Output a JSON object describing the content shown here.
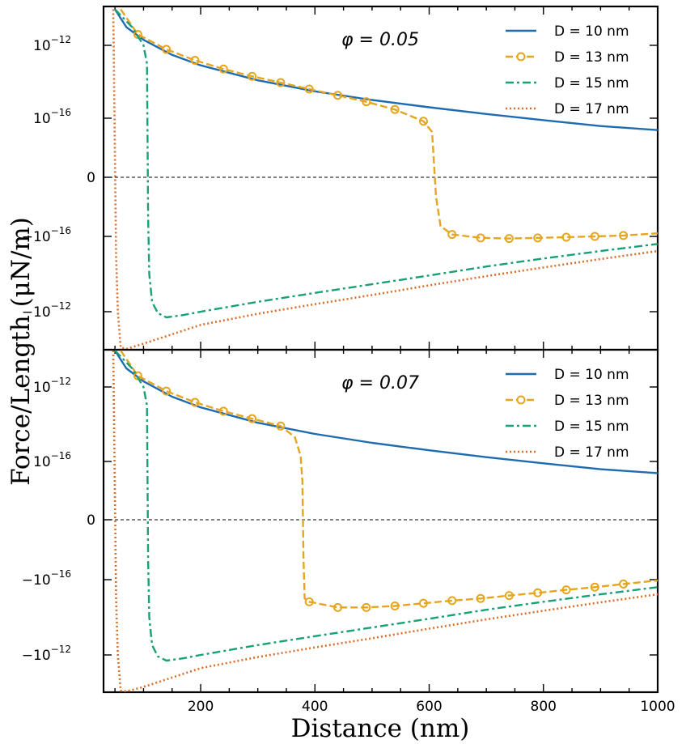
{
  "chart_data": {
    "type": "line",
    "xlabel": "Distance (nm)",
    "ylabel": "Force/Length (μN/m)",
    "y_scale": "symlog",
    "xlim": [
      30,
      1000
    ],
    "x_ticks": [
      200,
      400,
      600,
      800,
      1000
    ],
    "x_tick_labels": [
      "200",
      "400",
      "600",
      "800",
      "1000"
    ],
    "y_ticks": [
      {
        "value": 1e-12,
        "base": "10",
        "exp": "−12"
      },
      {
        "value": 1e-16,
        "base": "10",
        "exp": "−16"
      },
      {
        "value": 0,
        "base": "0",
        "exp": ""
      },
      {
        "value": -1e-16,
        "base": "−10",
        "exp": "−16"
      },
      {
        "value": -1e-12,
        "base": "−10",
        "exp": "−12"
      }
    ],
    "panels": [
      {
        "title": "φ = 0.05",
        "legend": [
          "D = 10 nm",
          "D = 13 nm",
          "D = 15 nm",
          "D = 17 nm"
        ],
        "series": [
          {
            "name": "D = 10 nm",
            "color": "#1f6bb0",
            "style": "solid",
            "points": [
              [
                50,
                9.5e-11
              ],
              [
                70,
                1e-11
              ],
              [
                100,
                2e-12
              ],
              [
                150,
                3e-13
              ],
              [
                200,
                8e-14
              ],
              [
                300,
                1.2e-14
              ],
              [
                400,
                3e-15
              ],
              [
                500,
                1e-15
              ],
              [
                600,
                4e-16
              ],
              [
                700,
                1.7e-16
              ],
              [
                800,
                8e-17
              ],
              [
                900,
                4e-17
              ],
              [
                1000,
                2.5e-17
              ]
            ]
          },
          {
            "name": "D = 13 nm",
            "color": "#e6a51e",
            "style": "dashed-markers",
            "points": [
              [
                60,
                9.5e-11
              ],
              [
                90,
                4e-12
              ],
              [
                140,
                6e-13
              ],
              [
                190,
                1.5e-13
              ],
              [
                240,
                5e-14
              ],
              [
                290,
                2e-14
              ],
              [
                340,
                9e-15
              ],
              [
                390,
                4e-15
              ],
              [
                440,
                1.8e-15
              ],
              [
                490,
                8e-16
              ],
              [
                540,
                3e-16
              ],
              [
                590,
                7e-17
              ],
              [
                605,
                2e-17
              ],
              [
                612,
                -1e-18
              ],
              [
                620,
                -3e-17
              ],
              [
                640,
                -8e-17
              ],
              [
                690,
                -1.2e-16
              ],
              [
                740,
                -1.3e-16
              ],
              [
                790,
                -1.2e-16
              ],
              [
                840,
                -1.1e-16
              ],
              [
                890,
                -1e-16
              ],
              [
                940,
                -9e-17
              ],
              [
                1000,
                -7e-17
              ]
            ]
          },
          {
            "name": "D = 15 nm",
            "color": "#18a077",
            "style": "dashdot",
            "points": [
              [
                50,
                9.5e-11
              ],
              [
                80,
                1e-11
              ],
              [
                100,
                1e-12
              ],
              [
                106,
                1e-13
              ],
              [
                108,
                -1e-17
              ],
              [
                110,
                -1e-14
              ],
              [
                115,
                -3e-13
              ],
              [
                125,
                -1.2e-12
              ],
              [
                140,
                -2e-12
              ],
              [
                170,
                -1.5e-12
              ],
              [
                200,
                -1e-12
              ],
              [
                300,
                -3e-13
              ],
              [
                400,
                -1e-13
              ],
              [
                500,
                -3.5e-14
              ],
              [
                600,
                -1.2e-14
              ],
              [
                700,
                -4e-15
              ],
              [
                800,
                -1.5e-15
              ],
              [
                900,
                -6e-16
              ],
              [
                1000,
                -2.5e-16
              ]
            ]
          },
          {
            "name": "D = 17 nm",
            "color": "#d86f2d",
            "style": "dotted",
            "points": [
              [
                47,
                9.5e-11
              ],
              [
                52,
                -1e-15
              ],
              [
                55,
                -1e-12
              ],
              [
                60,
                -8e-11
              ],
              [
                70,
                -9.5e-11
              ],
              [
                100,
                -5e-11
              ],
              [
                200,
                -5e-12
              ],
              [
                300,
                -1.3e-12
              ],
              [
                400,
                -4e-13
              ],
              [
                500,
                -1.3e-13
              ],
              [
                600,
                -4e-14
              ],
              [
                700,
                -1.3e-14
              ],
              [
                800,
                -4.5e-15
              ],
              [
                900,
                -1.6e-15
              ],
              [
                1000,
                -6e-16
              ]
            ]
          }
        ]
      },
      {
        "title": "φ = 0.07",
        "legend": [
          "D = 10 nm",
          "D = 13 nm",
          "D = 15 nm",
          "D = 17 nm"
        ],
        "series": [
          {
            "name": "D = 10 nm",
            "color": "#1f6bb0",
            "style": "solid",
            "points": [
              [
                50,
                9.5e-11
              ],
              [
                70,
                1e-11
              ],
              [
                100,
                2e-12
              ],
              [
                150,
                3e-13
              ],
              [
                200,
                8e-14
              ],
              [
                300,
                1.2e-14
              ],
              [
                400,
                3e-15
              ],
              [
                500,
                1e-15
              ],
              [
                600,
                4e-16
              ],
              [
                700,
                1.7e-16
              ],
              [
                800,
                8e-17
              ],
              [
                900,
                4e-17
              ],
              [
                1000,
                2.5e-17
              ]
            ]
          },
          {
            "name": "D = 13 nm",
            "color": "#e6a51e",
            "style": "dashed-markers",
            "points": [
              [
                60,
                9.5e-11
              ],
              [
                90,
                4e-12
              ],
              [
                140,
                6e-13
              ],
              [
                190,
                1.5e-13
              ],
              [
                240,
                5e-14
              ],
              [
                290,
                2e-14
              ],
              [
                340,
                8e-15
              ],
              [
                365,
                2e-15
              ],
              [
                375,
                2e-16
              ],
              [
                378,
                1e-17
              ],
              [
                380,
                -1e-17
              ],
              [
                382,
                -1e-15
              ],
              [
                390,
                -1.5e-15
              ],
              [
                440,
                -3e-15
              ],
              [
                490,
                -3e-15
              ],
              [
                540,
                -2.5e-15
              ],
              [
                590,
                -1.8e-15
              ],
              [
                640,
                -1.3e-15
              ],
              [
                690,
                -1e-15
              ],
              [
                740,
                -7e-16
              ],
              [
                790,
                -5e-16
              ],
              [
                840,
                -3.5e-16
              ],
              [
                890,
                -2.5e-16
              ],
              [
                940,
                -1.7e-16
              ],
              [
                1000,
                -1.1e-16
              ]
            ]
          },
          {
            "name": "D = 15 nm",
            "color": "#18a077",
            "style": "dashdot",
            "points": [
              [
                50,
                9.5e-11
              ],
              [
                80,
                1e-11
              ],
              [
                100,
                1e-12
              ],
              [
                106,
                1e-13
              ],
              [
                108,
                -1e-17
              ],
              [
                110,
                -1e-14
              ],
              [
                115,
                -3e-13
              ],
              [
                125,
                -1.2e-12
              ],
              [
                140,
                -2e-12
              ],
              [
                170,
                -1.5e-12
              ],
              [
                200,
                -1e-12
              ],
              [
                300,
                -3e-13
              ],
              [
                400,
                -1e-13
              ],
              [
                500,
                -3.5e-14
              ],
              [
                600,
                -1.2e-14
              ],
              [
                700,
                -4e-15
              ],
              [
                800,
                -1.5e-15
              ],
              [
                900,
                -6e-16
              ],
              [
                1000,
                -2.5e-16
              ]
            ]
          },
          {
            "name": "D = 17 nm",
            "color": "#d86f2d",
            "style": "dotted",
            "points": [
              [
                47,
                9.5e-11
              ],
              [
                52,
                -1e-15
              ],
              [
                55,
                -1e-12
              ],
              [
                60,
                -8e-11
              ],
              [
                70,
                -9.5e-11
              ],
              [
                100,
                -5e-11
              ],
              [
                200,
                -5e-12
              ],
              [
                300,
                -1.3e-12
              ],
              [
                400,
                -4e-13
              ],
              [
                500,
                -1.3e-13
              ],
              [
                600,
                -4e-14
              ],
              [
                700,
                -1.3e-14
              ],
              [
                800,
                -4.5e-15
              ],
              [
                900,
                -1.6e-15
              ],
              [
                1000,
                -6e-16
              ]
            ]
          }
        ]
      }
    ]
  }
}
